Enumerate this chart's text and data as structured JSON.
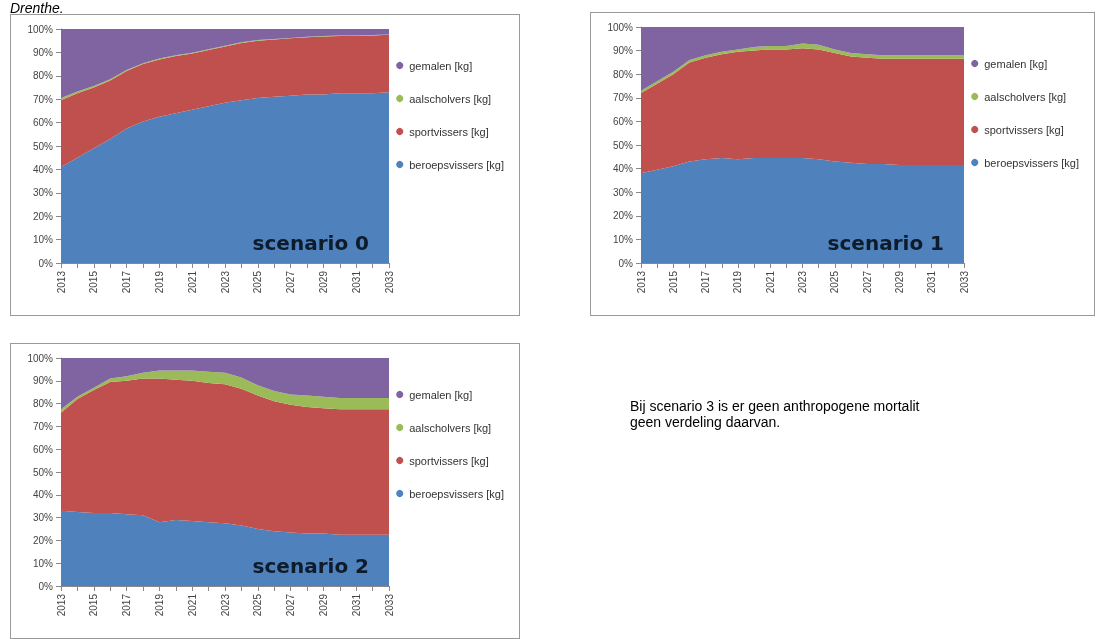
{
  "chart_data": [
    {
      "type": "area",
      "title": "Drenthe.",
      "stacked": true,
      "legend": "right",
      "annotations": [
        "scenario 0"
      ],
      "categories": [
        "2013",
        null,
        "2015",
        null,
        "2017",
        null,
        "2019",
        null,
        "2021",
        null,
        "2023",
        null,
        "2025",
        null,
        "2027",
        null,
        "2029",
        null,
        "2031",
        null,
        "2033"
      ],
      "ylim": [
        0,
        100
      ],
      "yticks": [
        {
          "value": 0,
          "label": "0%"
        },
        {
          "value": 10,
          "label": "10%"
        },
        {
          "value": 20,
          "label": "20%"
        },
        {
          "value": 30,
          "label": "30%"
        },
        {
          "value": 40,
          "label": "40%"
        },
        {
          "value": 50,
          "label": "50%"
        },
        {
          "value": 60,
          "label": "60%"
        },
        {
          "value": 70,
          "label": "70%"
        },
        {
          "value": 80,
          "label": "80%"
        },
        {
          "value": 90,
          "label": "90%"
        },
        {
          "value": 100,
          "label": "100%"
        }
      ],
      "series": [
        {
          "name": "beroepsvissers [kg]",
          "color": "#4f81bd",
          "values": [
            41,
            45,
            49,
            53,
            57.5,
            60.5,
            62.5,
            64,
            65.5,
            67,
            68.5,
            69.5,
            70.5,
            71,
            71.5,
            72,
            72,
            72.5,
            72.5,
            72.5,
            73
          ]
        },
        {
          "name": "sportvissers [kg]",
          "color": "#c0504d",
          "values": [
            28.5,
            27.5,
            26,
            25,
            24.5,
            24.5,
            24.5,
            24.5,
            24,
            24,
            24,
            24.5,
            24.5,
            24.5,
            24.5,
            24.5,
            24.8,
            24.5,
            24.5,
            24.7,
            24.5
          ]
        },
        {
          "name": "aalscholvers [kg]",
          "color": "#9bbb59",
          "values": [
            1,
            0.8,
            0.6,
            0.5,
            0.5,
            0.4,
            0.4,
            0.3,
            0.3,
            0.3,
            0.3,
            0.3,
            0.3,
            0.2,
            0.2,
            0.2,
            0.2,
            0.2,
            0.2,
            0.2,
            0.2
          ]
        },
        {
          "name": "gemalen [kg]",
          "color": "#8064a2",
          "values": [
            29.5,
            26.7,
            24.4,
            21.5,
            17.5,
            14.6,
            12.6,
            11.2,
            10.2,
            8.7,
            7.2,
            5.7,
            4.7,
            4.3,
            3.8,
            3.3,
            3.0,
            2.8,
            2.8,
            2.6,
            2.3
          ]
        }
      ]
    },
    {
      "type": "area",
      "stacked": true,
      "legend": "right",
      "annotations": [
        "scenario 1"
      ],
      "categories": [
        "2013",
        null,
        "2015",
        null,
        "2017",
        null,
        "2019",
        null,
        "2021",
        null,
        "2023",
        null,
        "2025",
        null,
        "2027",
        null,
        "2029",
        null,
        "2031",
        null,
        "2033"
      ],
      "ylim": [
        0,
        100
      ],
      "yticks": [
        {
          "value": 0,
          "label": "0%"
        },
        {
          "value": 10,
          "label": "10%"
        },
        {
          "value": 20,
          "label": "20%"
        },
        {
          "value": 30,
          "label": "30%"
        },
        {
          "value": 40,
          "label": "40%"
        },
        {
          "value": 50,
          "label": "50%"
        },
        {
          "value": 60,
          "label": "60%"
        },
        {
          "value": 70,
          "label": "70%"
        },
        {
          "value": 80,
          "label": "80%"
        },
        {
          "value": 90,
          "label": "90%"
        },
        {
          "value": 100,
          "label": "100%"
        }
      ],
      "series": [
        {
          "name": "beroepsvissers [kg]",
          "color": "#4f81bd",
          "values": [
            38,
            39.5,
            41,
            43,
            44,
            44.5,
            44,
            44.5,
            44.5,
            44.5,
            44.5,
            44,
            43,
            42.5,
            42,
            42,
            41.5,
            41.5,
            41.5,
            41.5,
            41.5
          ]
        },
        {
          "name": "sportvissers [kg]",
          "color": "#c0504d",
          "values": [
            34,
            36.5,
            39,
            42,
            43,
            44,
            45.5,
            45.5,
            46,
            46,
            46.5,
            46.5,
            46,
            45,
            45,
            44.5,
            45,
            45,
            45,
            45,
            45
          ]
        },
        {
          "name": "aalscholvers [kg]",
          "color": "#9bbb59",
          "values": [
            1,
            1,
            1,
            1,
            1,
            1,
            1,
            1.5,
            1.5,
            1.5,
            2,
            2,
            1.5,
            1.5,
            1.5,
            1.5,
            1.5,
            1.5,
            1.5,
            1.5,
            1.5
          ]
        },
        {
          "name": "gemalen [kg]",
          "color": "#8064a2",
          "values": [
            27,
            23,
            19,
            14,
            12,
            10.5,
            9.5,
            8.5,
            8,
            8,
            7,
            7.5,
            9.5,
            11,
            11.5,
            12,
            12,
            12,
            12,
            12,
            12
          ]
        }
      ]
    },
    {
      "type": "area",
      "stacked": true,
      "legend": "right",
      "annotations": [
        "scenario 2"
      ],
      "categories": [
        "2013",
        null,
        "2015",
        null,
        "2017",
        null,
        "2019",
        null,
        "2021",
        null,
        "2023",
        null,
        "2025",
        null,
        "2027",
        null,
        "2029",
        null,
        "2031",
        null,
        "2033"
      ],
      "ylim": [
        0,
        100
      ],
      "yticks": [
        {
          "value": 0,
          "label": "0%"
        },
        {
          "value": 10,
          "label": "10%"
        },
        {
          "value": 20,
          "label": "20%"
        },
        {
          "value": 30,
          "label": "30%"
        },
        {
          "value": 40,
          "label": "40%"
        },
        {
          "value": 50,
          "label": "50%"
        },
        {
          "value": 60,
          "label": "60%"
        },
        {
          "value": 70,
          "label": "70%"
        },
        {
          "value": 80,
          "label": "80%"
        },
        {
          "value": 90,
          "label": "90%"
        },
        {
          "value": 100,
          "label": "100%"
        }
      ],
      "series": [
        {
          "name": "beroepsvissers [kg]",
          "color": "#4f81bd",
          "values": [
            33,
            32.5,
            32,
            32,
            31.5,
            31,
            28,
            29,
            28.5,
            28,
            27.5,
            26.5,
            25,
            24,
            23.5,
            23,
            23,
            22.5,
            22.5,
            22.5,
            22.5
          ]
        },
        {
          "name": "sportvissers [kg]",
          "color": "#c0504d",
          "values": [
            43,
            49.5,
            54,
            57.5,
            58.5,
            60,
            63,
            61.5,
            61.5,
            61,
            61,
            60,
            58.5,
            57,
            56,
            55.5,
            55,
            55,
            55,
            55,
            55
          ]
        },
        {
          "name": "aalscholvers [kg]",
          "color": "#9bbb59",
          "values": [
            1.5,
            1,
            1,
            1.5,
            2,
            2.5,
            3.5,
            4,
            4.5,
            5,
            5,
            5,
            4.5,
            4.5,
            4.5,
            5,
            5,
            5,
            5,
            5,
            5
          ]
        },
        {
          "name": "gemalen [kg]",
          "color": "#8064a2",
          "values": [
            22.5,
            17,
            13,
            9,
            8,
            6.5,
            5.5,
            5.5,
            5.5,
            6,
            6.5,
            8.5,
            12,
            14.5,
            16,
            16.5,
            17,
            17.5,
            17.5,
            17.5,
            17.5
          ]
        }
      ]
    },
    {
      "type": "other",
      "annotations": [
        "Bij scenario 3 is er geen anthropogene mortalit",
        "geen verdeling daarvan."
      ]
    }
  ]
}
